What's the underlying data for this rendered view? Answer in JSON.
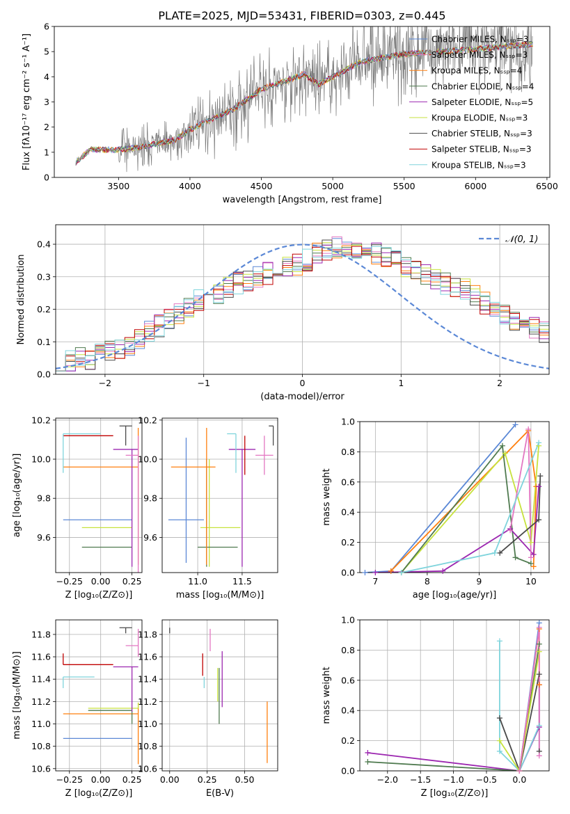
{
  "title": "PLATE=2025, MJD=53431, FIBERID=0303, z=0.445",
  "chart_data": [
    {
      "id": "spectrum",
      "type": "line",
      "xlabel": "wavelength [Angstrom, rest frame]",
      "ylabel": "Flux [fλ10⁻¹⁷ erg cm⁻² s⁻¹ A⁻¹]",
      "xlim": [
        3050,
        6520
      ],
      "ylim": [
        0,
        6
      ],
      "xticks": [
        3500,
        4000,
        4500,
        5000,
        5500,
        6000,
        6500
      ],
      "yticks": [
        0,
        1,
        2,
        3,
        4,
        5,
        6
      ],
      "grid": false,
      "legend_position": "top-right",
      "continuum": {
        "x": [
          3200,
          3300,
          3500,
          3700,
          3900,
          4000,
          4300,
          4500,
          4800,
          4900,
          5200,
          5500,
          6000,
          6400
        ],
        "y": [
          0.6,
          1.1,
          1.1,
          1.25,
          1.5,
          1.9,
          2.7,
          3.5,
          4.1,
          3.7,
          4.6,
          4.9,
          5.1,
          5.3
        ]
      },
      "noise_start": 3500,
      "series": [
        {
          "name": "Chabrier MILES, N_SSP=3",
          "color": "#5b88d6"
        },
        {
          "name": "Salpeter MILES, N_SSP=3",
          "color": "#e377c2"
        },
        {
          "name": "Kroupa MILES, N_SSP=4",
          "color": "#ff7f0e"
        },
        {
          "name": "Chabrier ELODIE, N_SSP=4",
          "color": "#4f7a4f"
        },
        {
          "name": "Salpeter ELODIE, N_SSP=5",
          "color": "#9c27b0"
        },
        {
          "name": "Kroupa ELODIE, N_SSP=3",
          "color": "#c7e23e"
        },
        {
          "name": "Chabrier STELIB, N_SSP=3",
          "color": "#4a4a4a"
        },
        {
          "name": "Salpeter STELIB, N_SSP=3",
          "color": "#c00000"
        },
        {
          "name": "Kroupa STELIB, N_SSP=3",
          "color": "#7fd4dc"
        }
      ]
    },
    {
      "id": "histogram",
      "type": "histogram",
      "xlabel": "(data-model)/error",
      "ylabel": "Normed distribution",
      "xlim": [
        -2.5,
        2.5
      ],
      "ylim": [
        0,
        0.46
      ],
      "xticks": [
        -2,
        -1,
        0,
        1,
        2
      ],
      "yticks": [
        0.0,
        0.1,
        0.2,
        0.3,
        0.4
      ],
      "grid": true,
      "legend": "𝒩(0, 1)",
      "legend_position": "top-right",
      "bin_edges_from": -2.5,
      "bin_width": 0.1,
      "base_values": [
        0.04,
        0.04,
        0.05,
        0.05,
        0.06,
        0.07,
        0.08,
        0.09,
        0.11,
        0.13,
        0.15,
        0.17,
        0.19,
        0.21,
        0.23,
        0.25,
        0.25,
        0.27,
        0.28,
        0.29,
        0.3,
        0.31,
        0.32,
        0.33,
        0.34,
        0.35,
        0.37,
        0.38,
        0.39,
        0.39,
        0.39,
        0.38,
        0.37,
        0.36,
        0.35,
        0.33,
        0.32,
        0.31,
        0.29,
        0.28,
        0.27,
        0.26,
        0.24,
        0.22,
        0.2,
        0.18,
        0.17,
        0.15,
        0.14,
        0.13
      ]
    },
    {
      "id": "age-vs-Z",
      "type": "errorbar",
      "xlabel": "Z [log₁₀(Z/Z⊙)]",
      "ylabel": "age  [log₁₀(age/yr)]",
      "xlim": [
        -0.36,
        0.33
      ],
      "ylim": [
        9.42,
        10.21
      ],
      "xticks": [
        -0.25,
        0.0,
        0.25
      ],
      "yticks": [
        9.6,
        9.8,
        10.0,
        10.2
      ],
      "points": [
        {
          "color": "#5b88d6",
          "x": 0.25,
          "xerr": [
            0.55,
            0.0
          ],
          "y": 9.69,
          "yerr": [
            0.0,
            0.0
          ]
        },
        {
          "color": "#c7e23e",
          "x": 0.25,
          "xerr": [
            0.4,
            0.0
          ],
          "y": 9.65,
          "yerr": [
            0.0,
            0.0
          ]
        },
        {
          "color": "#4f7a4f",
          "x": 0.25,
          "xerr": [
            0.4,
            0.0
          ],
          "y": 9.55,
          "yerr": [
            0.0,
            0.0
          ]
        },
        {
          "color": "#ff7f0e",
          "x": 0.3,
          "xerr": [
            0.6,
            0.0
          ],
          "y": 9.96,
          "yerr": [
            0.5,
            0.2
          ]
        },
        {
          "color": "#9c27b0",
          "x": 0.25,
          "xerr": [
            0.15,
            0.05
          ],
          "y": 10.05,
          "yerr": [
            0.6,
            0.0
          ]
        },
        {
          "color": "#e377c2",
          "x": 0.3,
          "xerr": [
            0.1,
            0.0
          ],
          "y": 10.02,
          "yerr": [
            0.6,
            0.1
          ]
        },
        {
          "color": "#c00000",
          "x": -0.3,
          "xerr": [
            0.0,
            0.4
          ],
          "y": 10.12,
          "yerr": [
            0.0,
            0.0
          ]
        },
        {
          "color": "#7fd4dc",
          "x": -0.3,
          "xerr": [
            0.0,
            0.3
          ],
          "y": 10.13,
          "yerr": [
            0.2,
            0.0
          ]
        },
        {
          "color": "#4a4a4a",
          "x": 0.2,
          "xerr": [
            0.05,
            0.05
          ],
          "y": 10.17,
          "yerr": [
            0.1,
            0.0
          ]
        }
      ]
    },
    {
      "id": "age-vs-mass",
      "type": "errorbar",
      "xlabel": "mass [log₁₀(M/M⊙)]",
      "xlim": [
        10.6,
        11.9
      ],
      "ylim": [
        9.42,
        10.21
      ],
      "xticks": [
        11.0,
        11.5
      ],
      "yticks": [
        9.6,
        9.8,
        10.0,
        10.2
      ],
      "points": [
        {
          "color": "#5b88d6",
          "x": 10.87,
          "xerr": [
            0.2,
            0.2
          ],
          "y": 9.69,
          "yerr": [
            0.22,
            0.42
          ]
        },
        {
          "color": "#c7e23e",
          "x": 11.13,
          "xerr": [
            0.1,
            0.35
          ],
          "y": 9.65,
          "yerr": [
            0.2,
            0.35
          ]
        },
        {
          "color": "#4f7a4f",
          "x": 11.1,
          "xerr": [
            0.1,
            0.35
          ],
          "y": 9.55,
          "yerr": [
            0.1,
            0.45
          ]
        },
        {
          "color": "#ff7f0e",
          "x": 11.1,
          "xerr": [
            0.4,
            0.1
          ],
          "y": 9.96,
          "yerr": [
            0.5,
            0.2
          ]
        },
        {
          "color": "#9c27b0",
          "x": 11.5,
          "xerr": [
            0.15,
            0.15
          ],
          "y": 10.05,
          "yerr": [
            0.6,
            0.0
          ]
        },
        {
          "color": "#e377c2",
          "x": 11.75,
          "xerr": [
            0.1,
            0.1
          ],
          "y": 10.02,
          "yerr": [
            0.1,
            0.1
          ]
        },
        {
          "color": "#c00000",
          "x": 11.53,
          "xerr": [
            0.0,
            0.0
          ],
          "y": 10.12,
          "yerr": [
            0.2,
            0.0
          ]
        },
        {
          "color": "#7fd4dc",
          "x": 11.43,
          "xerr": [
            0.1,
            0.0
          ],
          "y": 10.13,
          "yerr": [
            0.2,
            0.0
          ]
        },
        {
          "color": "#4a4a4a",
          "x": 11.85,
          "xerr": [
            0.05,
            0.0
          ],
          "y": 10.17,
          "yerr": [
            0.1,
            0.0
          ]
        }
      ]
    },
    {
      "id": "mass-weight-vs-age",
      "type": "line",
      "xlabel": "age  [log₁₀(age/yr)]",
      "ylabel": "mass weight",
      "xlim": [
        6.7,
        10.35
      ],
      "ylim": [
        0,
        1
      ],
      "xticks": [
        7,
        8,
        9,
        10
      ],
      "yticks": [
        0.0,
        0.2,
        0.4,
        0.6,
        0.8,
        1.0
      ],
      "series": [
        {
          "color": "#5b88d6",
          "x": [
            6.8,
            7.3,
            9.7
          ],
          "y": [
            0.0,
            0.01,
            0.98
          ]
        },
        {
          "color": "#ff7f0e",
          "x": [
            7.3,
            9.95,
            10.1,
            10.05
          ],
          "y": [
            0.01,
            0.94,
            0.57,
            0.04
          ]
        },
        {
          "color": "#c7e23e",
          "x": [
            7.5,
            9.5,
            10.0,
            10.15
          ],
          "y": [
            0.0,
            0.79,
            0.2,
            0.84
          ]
        },
        {
          "color": "#4f7a4f",
          "x": [
            7.5,
            9.45,
            9.7,
            10.0
          ],
          "y": [
            0.0,
            0.84,
            0.1,
            0.06
          ]
        },
        {
          "color": "#9c27b0",
          "x": [
            7.0,
            8.3,
            9.6,
            10.05,
            10.15
          ],
          "y": [
            0.0,
            0.01,
            0.29,
            0.12,
            0.57
          ]
        },
        {
          "color": "#e377c2",
          "x": [
            9.6,
            9.95,
            10.0
          ],
          "y": [
            0.28,
            0.95,
            0.1
          ]
        },
        {
          "color": "#4a4a4a",
          "x": [
            9.4,
            10.15,
            10.18
          ],
          "y": [
            0.13,
            0.35,
            0.64
          ]
        },
        {
          "color": "#7fd4dc",
          "x": [
            7.5,
            9.3,
            10.15
          ],
          "y": [
            0.0,
            0.13,
            0.86
          ]
        }
      ]
    },
    {
      "id": "mass-vs-Z",
      "type": "errorbar",
      "xlabel": "Z [log₁₀(Z/Z⊙)]",
      "ylabel": "mass [log₁₀(M/M⊙)]",
      "xlim": [
        -0.36,
        0.33
      ],
      "ylim": [
        10.58,
        11.93
      ],
      "xticks": [
        -0.25,
        0.0,
        0.25
      ],
      "yticks": [
        10.6,
        10.8,
        11.0,
        11.2,
        11.4,
        11.6,
        11.8
      ],
      "points": [
        {
          "color": "#5b88d6",
          "x": 0.25,
          "xerr": [
            0.55,
            0.0
          ],
          "y": 10.87,
          "yerr": [
            0.0,
            0.0
          ]
        },
        {
          "color": "#ff7f0e",
          "x": 0.3,
          "xerr": [
            0.6,
            0.0
          ],
          "y": 11.09,
          "yerr": [
            0.45,
            0.1
          ]
        },
        {
          "color": "#4f7a4f",
          "x": 0.25,
          "xerr": [
            0.35,
            0.0
          ],
          "y": 11.12,
          "yerr": [
            0.12,
            0.0
          ]
        },
        {
          "color": "#c7e23e",
          "x": 0.3,
          "xerr": [
            0.4,
            0.0
          ],
          "y": 11.14,
          "yerr": [
            0.0,
            0.05
          ]
        },
        {
          "color": "#7fd4dc",
          "x": -0.3,
          "xerr": [
            0.0,
            0.25
          ],
          "y": 11.42,
          "yerr": [
            0.1,
            0.0
          ]
        },
        {
          "color": "#9c27b0",
          "x": 0.25,
          "xerr": [
            0.15,
            0.05
          ],
          "y": 11.51,
          "yerr": [
            0.4,
            0.0
          ]
        },
        {
          "color": "#c00000",
          "x": -0.3,
          "xerr": [
            0.0,
            0.4
          ],
          "y": 11.53,
          "yerr": [
            0.0,
            0.1
          ]
        },
        {
          "color": "#e377c2",
          "x": 0.3,
          "xerr": [
            0.1,
            0.0
          ],
          "y": 11.7,
          "yerr": [
            0.1,
            0.15
          ]
        },
        {
          "color": "#4a4a4a",
          "x": 0.2,
          "xerr": [
            0.05,
            0.05
          ],
          "y": 11.86,
          "yerr": [
            0.05,
            0.0
          ]
        }
      ]
    },
    {
      "id": "mass-vs-EBV",
      "type": "errorbar",
      "xlabel": "E(B-V)",
      "xlim": [
        -0.05,
        0.72
      ],
      "ylim": [
        10.58,
        11.93
      ],
      "xticks": [
        0.0,
        0.25,
        0.5
      ],
      "yticks": [
        10.6,
        10.8,
        11.0,
        11.2,
        11.4,
        11.6,
        11.8
      ],
      "points": [
        {
          "color": "#4a4a4a",
          "x": 0.0,
          "xerr": [
            0.0,
            0.0
          ],
          "y": 11.86,
          "yerr": [
            0.05,
            0.0
          ]
        },
        {
          "color": "#c00000",
          "x": 0.22,
          "xerr": [
            0.0,
            0.0
          ],
          "y": 11.53,
          "yerr": [
            0.1,
            0.1
          ]
        },
        {
          "color": "#7fd4dc",
          "x": 0.23,
          "xerr": [
            0.0,
            0.0
          ],
          "y": 11.42,
          "yerr": [
            0.1,
            0.0
          ]
        },
        {
          "color": "#e377c2",
          "x": 0.27,
          "xerr": [
            0.0,
            0.0
          ],
          "y": 11.7,
          "yerr": [
            0.05,
            0.15
          ]
        },
        {
          "color": "#4f7a4f",
          "x": 0.33,
          "xerr": [
            0.0,
            0.0
          ],
          "y": 11.25,
          "yerr": [
            0.25,
            0.25
          ]
        },
        {
          "color": "#c7e23e",
          "x": 0.32,
          "xerr": [
            0.0,
            0.0
          ],
          "y": 11.3,
          "yerr": [
            0.1,
            0.2
          ]
        },
        {
          "color": "#9c27b0",
          "x": 0.35,
          "xerr": [
            0.0,
            0.0
          ],
          "y": 11.4,
          "yerr": [
            0.25,
            0.25
          ]
        },
        {
          "color": "#ff7f0e",
          "x": 0.65,
          "xerr": [
            0.0,
            0.0
          ],
          "y": 10.9,
          "yerr": [
            0.25,
            0.3
          ]
        }
      ]
    },
    {
      "id": "mass-weight-vs-Z",
      "type": "line",
      "xlabel": "Z [log₁₀(Z/Z⊙)]",
      "ylabel": "mass weight",
      "xlim": [
        -2.42,
        0.45
      ],
      "ylim": [
        0,
        1
      ],
      "xticks": [
        -2.0,
        -1.5,
        -1.0,
        -0.5,
        0.0
      ],
      "yticks": [
        0.0,
        0.2,
        0.4,
        0.6,
        0.8,
        1.0
      ],
      "series": [
        {
          "color": "#9c27b0",
          "x": [
            -2.3,
            0.0,
            0.3,
            0.3
          ],
          "y": [
            0.12,
            0.0,
            0.29,
            0.57
          ]
        },
        {
          "color": "#4f7a4f",
          "x": [
            -2.3,
            0.0,
            0.3
          ],
          "y": [
            0.06,
            0.0,
            0.84
          ]
        },
        {
          "color": "#7fd4dc",
          "x": [
            -0.3,
            -0.3,
            0.0,
            0.3
          ],
          "y": [
            0.86,
            0.13,
            0.0,
            0.3
          ]
        },
        {
          "color": "#4a4a4a",
          "x": [
            -0.3,
            0.0,
            0.3,
            0.3
          ],
          "y": [
            0.35,
            0.0,
            0.64,
            0.13
          ]
        },
        {
          "color": "#c7e23e",
          "x": [
            -0.3,
            0.0,
            0.3
          ],
          "y": [
            0.2,
            0.0,
            0.79
          ]
        },
        {
          "color": "#5b88d6",
          "x": [
            0.0,
            0.3
          ],
          "y": [
            0.0,
            0.98
          ]
        },
        {
          "color": "#ff7f0e",
          "x": [
            0.0,
            0.3,
            0.3
          ],
          "y": [
            0.0,
            0.94,
            0.57
          ]
        },
        {
          "color": "#e377c2",
          "x": [
            0.0,
            0.3,
            0.3
          ],
          "y": [
            0.0,
            0.95,
            0.1
          ]
        }
      ]
    }
  ]
}
